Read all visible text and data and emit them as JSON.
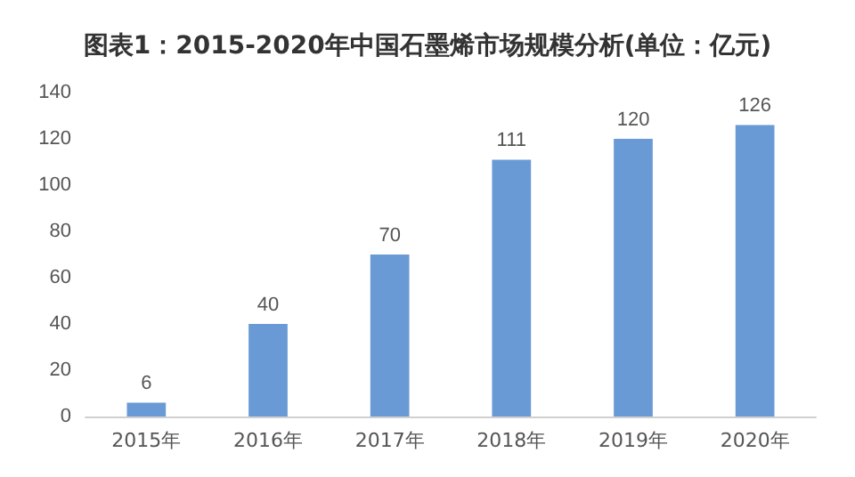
{
  "chart_data": {
    "type": "bar",
    "title": "图表1：2015-2020年中国石墨烯市场规模分析(单位：亿元)",
    "categories": [
      "2015年",
      "2016年",
      "2017年",
      "2018年",
      "2019年",
      "2020年"
    ],
    "values": [
      6,
      40,
      70,
      111,
      120,
      126
    ],
    "color": "#6a9ad5",
    "ylim": [
      0,
      140
    ],
    "yticks": [
      0,
      20,
      40,
      60,
      80,
      100,
      120,
      140
    ],
    "grid": false,
    "data_labels": true
  }
}
